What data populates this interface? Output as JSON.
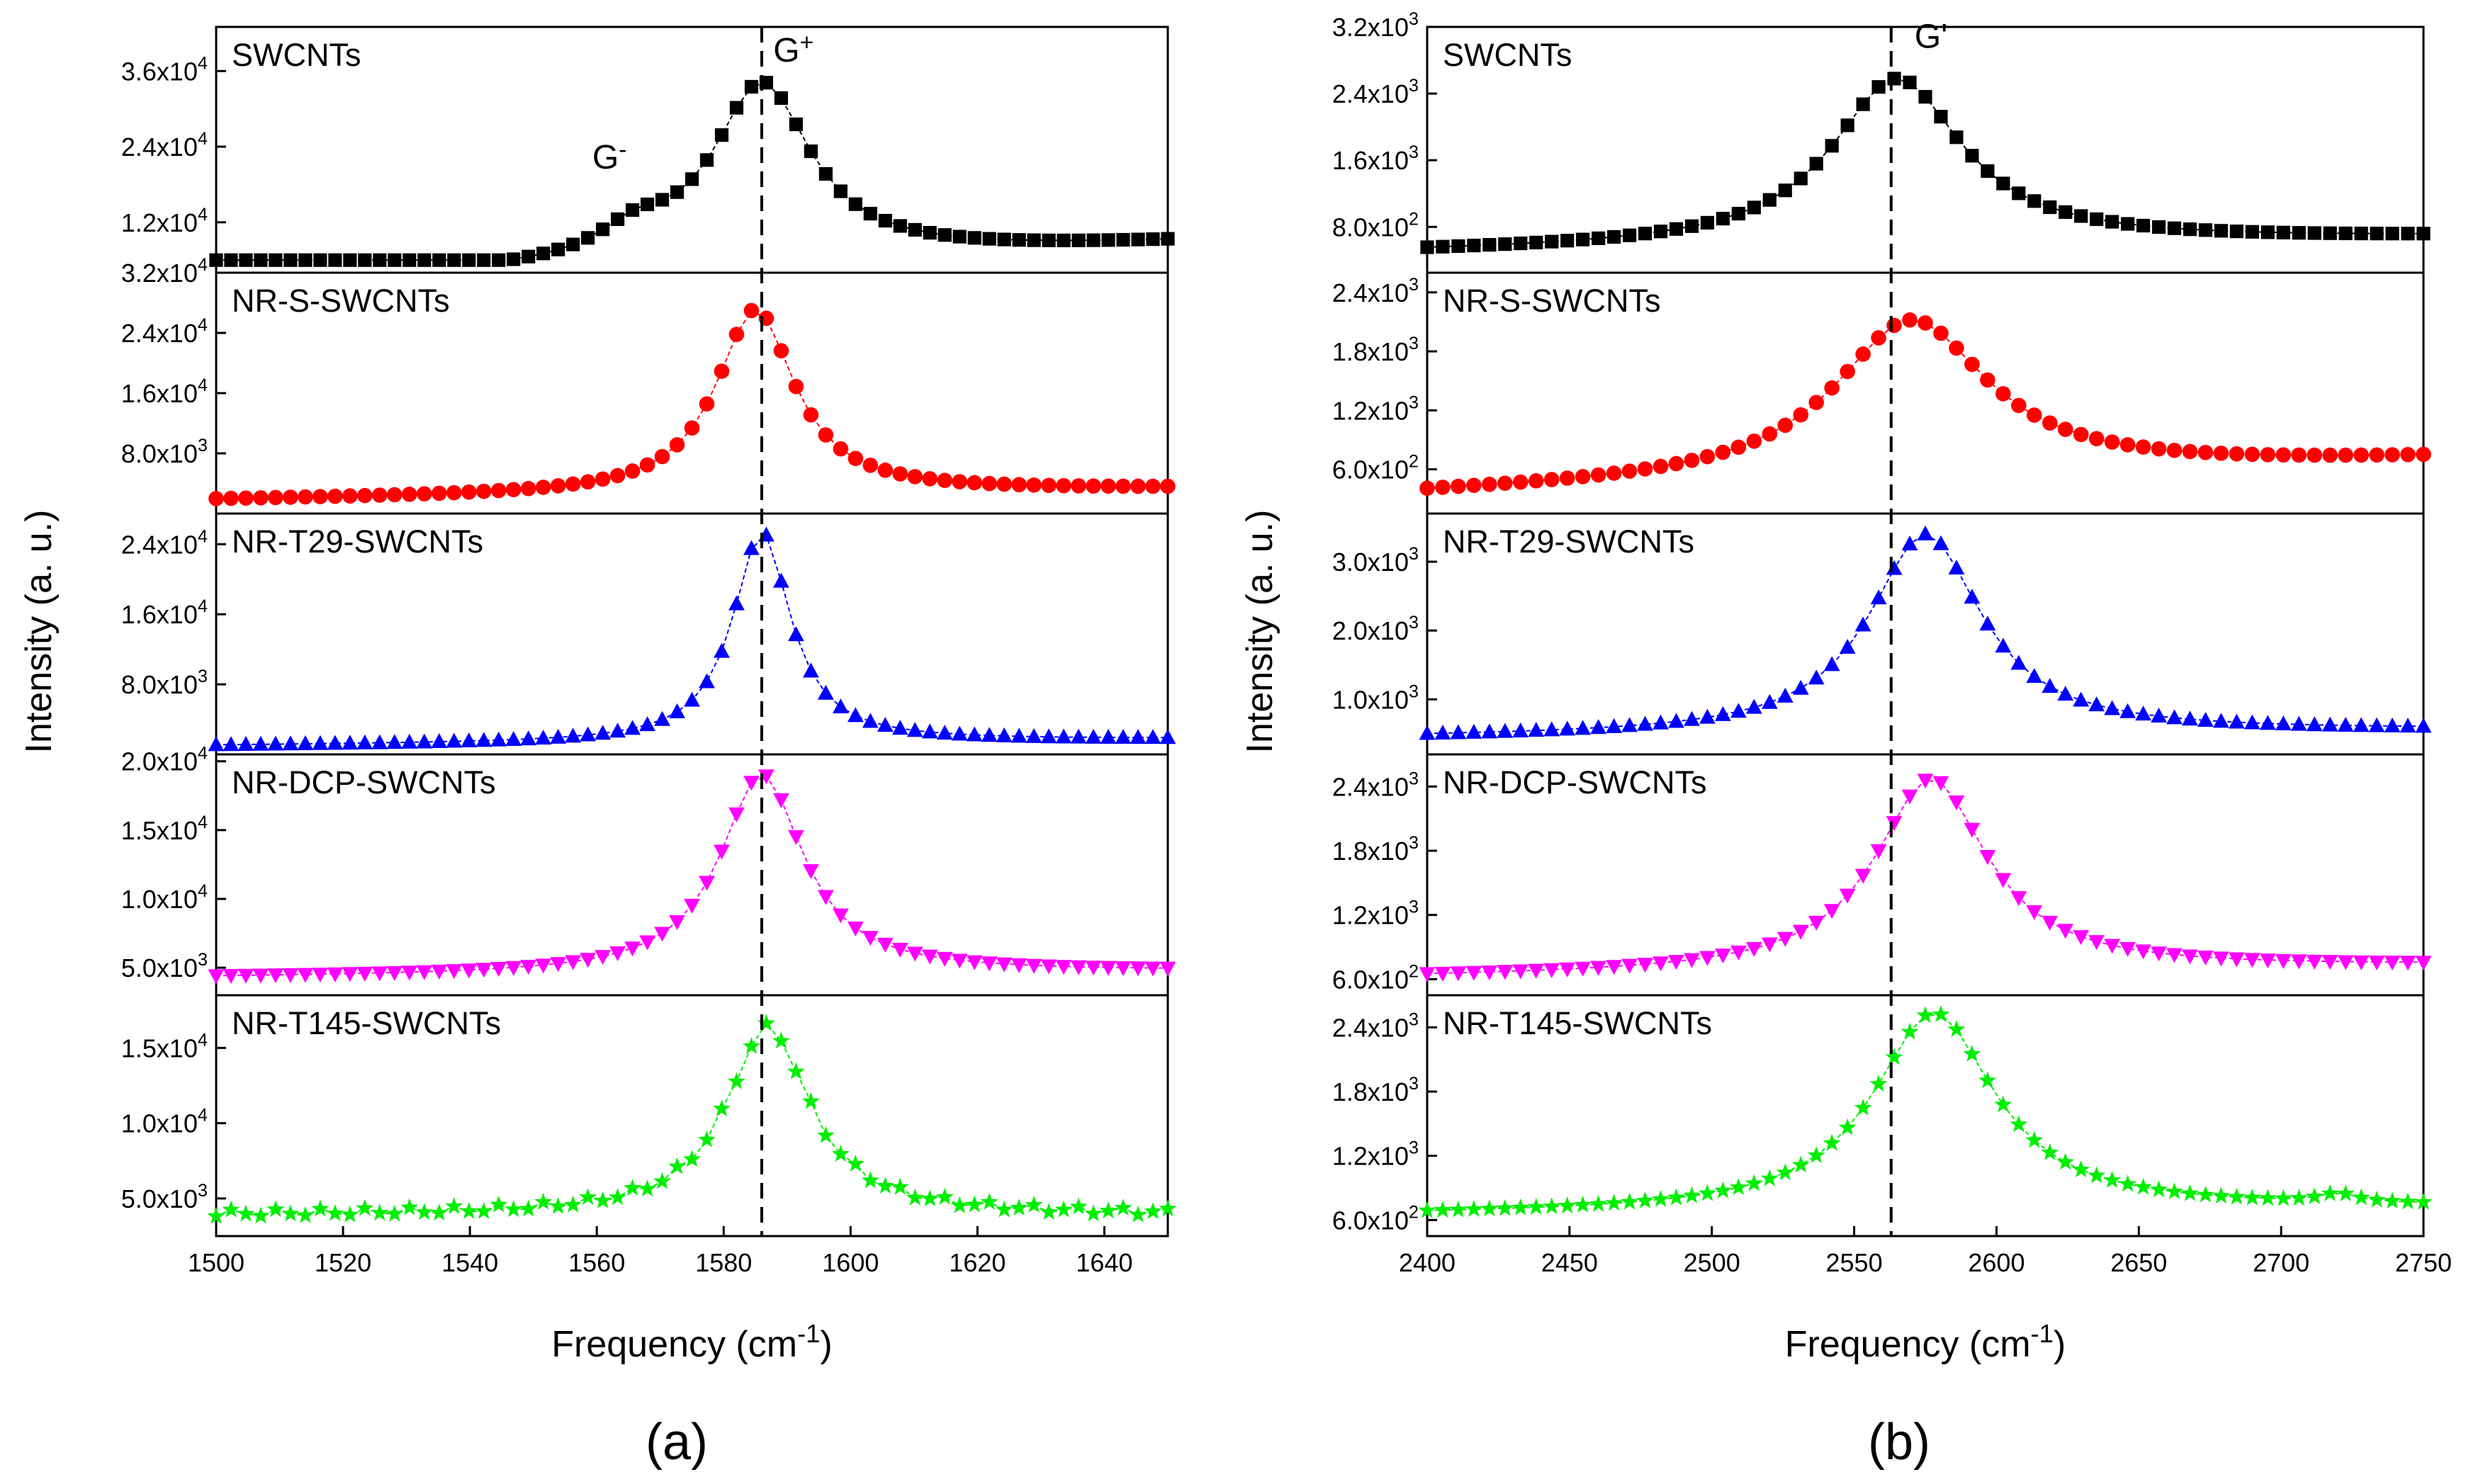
{
  "figure": {
    "panel_labels": [
      "(a)",
      "(b)"
    ]
  },
  "chart_data": [
    {
      "type": "line",
      "title": "(a)",
      "xlabel": "Frequency (cm-1)",
      "ylabel": "Intensity (a. u.)",
      "xlim": [
        1500,
        1650
      ],
      "xticks": [
        1500,
        1520,
        1540,
        1560,
        1580,
        1600,
        1620,
        1640
      ],
      "xtick_labels": [
        "1500",
        "1520",
        "1540",
        "1560",
        "1580",
        "1600",
        "1620",
        "1640"
      ],
      "dashed_line_x": 1586,
      "annotations": [
        {
          "text": "G-",
          "base": "G",
          "sup": "-",
          "x": 1562,
          "y": 20500,
          "subplot": 0
        },
        {
          "text": "G+",
          "base": "G",
          "sup": "+",
          "x": 1591,
          "y": 37500,
          "subplot": 0
        }
      ],
      "subplots": [
        {
          "name": "SWCNTs",
          "color": "#000000",
          "marker": "square",
          "ylim": [
            4000,
            43000
          ],
          "yticks": [
            12000,
            24000,
            36000
          ],
          "ytick_labels": [
            [
              "1.2x10",
              "4"
            ],
            [
              "2.4x10",
              "4"
            ],
            [
              "3.6x10",
              "4"
            ]
          ],
          "peak": {
            "x0": 1586,
            "amp": 28000,
            "gamma": 9.5,
            "base": 2000,
            "slope": 45,
            "xref": 1500,
            "floor": 6000
          },
          "shoulder": {
            "x0": 1566,
            "amp": 4000,
            "gamma": 7
          }
        },
        {
          "name": "NR-S-SWCNTs",
          "color": "#ff0000",
          "marker": "circle",
          "ylim": [
            0,
            32000
          ],
          "yticks": [
            8000,
            16000,
            24000,
            32000
          ],
          "ytick_labels": [
            [
              "8.0x10",
              "3"
            ],
            [
              "1.6x10",
              "4"
            ],
            [
              "2.4x10",
              "4"
            ],
            [
              "3.2x10",
              "4"
            ]
          ],
          "peak": {
            "x0": 1585,
            "amp": 24500,
            "gamma": 7.5,
            "base": 1800,
            "slope": 10,
            "xref": 1500,
            "floor": 0
          }
        },
        {
          "name": "NR-T29-SWCNTs",
          "color": "#0000ff",
          "marker": "triangle-up",
          "ylim": [
            0,
            27500
          ],
          "yticks": [
            8000,
            16000,
            24000
          ],
          "ytick_labels": [
            [
              "8.0x10",
              "3"
            ],
            [
              "1.6x10",
              "4"
            ],
            [
              "2.4x10",
              "4"
            ]
          ],
          "peak": {
            "x0": 1586,
            "amp": 24000,
            "gamma": 5.5,
            "base": 1000,
            "slope": 5,
            "xref": 1500,
            "floor": 0
          }
        },
        {
          "name": "NR-DCP-SWCNTs",
          "color": "#ff00ff",
          "marker": "triangle-down",
          "ylim": [
            3000,
            20500
          ],
          "yticks": [
            5000,
            10000,
            15000,
            20000
          ],
          "ytick_labels": [
            [
              "5.0x10",
              "3"
            ],
            [
              "1.0x10",
              "4"
            ],
            [
              "1.5x10",
              "4"
            ],
            [
              "2.0x10",
              "4"
            ]
          ],
          "peak": {
            "x0": 1586,
            "amp": 14500,
            "gamma": 8,
            "base": 4300,
            "slope": 3,
            "xref": 1500,
            "floor": 0
          }
        },
        {
          "name": "NR-T145-SWCNTs",
          "color": "#00ee00",
          "marker": "star",
          "ylim": [
            2500,
            18500
          ],
          "yticks": [
            5000,
            10000,
            15000
          ],
          "ytick_labels": [
            [
              "5.0x10",
              "3"
            ],
            [
              "1.0x10",
              "4"
            ],
            [
              "1.5x10",
              "4"
            ]
          ],
          "peak": {
            "x0": 1587,
            "amp": 12500,
            "gamma": 8,
            "base": 3900,
            "slope": 0,
            "xref": 1500,
            "floor": 0
          },
          "wiggle": 250
        }
      ]
    },
    {
      "type": "line",
      "title": "(b)",
      "xlabel": "Frequency (cm-1)",
      "ylabel": "Intensity (a. u.)",
      "xlim": [
        2400,
        2750
      ],
      "xticks": [
        2400,
        2450,
        2500,
        2550,
        2600,
        2650,
        2700,
        2750
      ],
      "xtick_labels": [
        "2400",
        "2450",
        "2500",
        "2550",
        "2600",
        "2650",
        "2700",
        "2750"
      ],
      "dashed_line_x": 2563,
      "annotations": [
        {
          "text": "G'",
          "base": "G'",
          "sup": "",
          "x": 2577,
          "y": 2950,
          "subplot": 0
        }
      ],
      "subplots": [
        {
          "name": "SWCNTs",
          "color": "#000000",
          "marker": "square",
          "ylim": [
            250,
            3200
          ],
          "yticks": [
            800,
            1600,
            2400,
            3200
          ],
          "ytick_labels": [
            [
              "8.0x10",
              "2"
            ],
            [
              "1.6x10",
              "3"
            ],
            [
              "2.4x10",
              "3"
            ],
            [
              "3.2x10",
              "3"
            ]
          ],
          "peak": {
            "x0": 2565,
            "amp": 2000,
            "gamma": 28,
            "base": 500,
            "slope": 0.5,
            "xref": 2400,
            "floor": 0
          }
        },
        {
          "name": "NR-S-SWCNTs",
          "color": "#ff0000",
          "marker": "circle",
          "ylim": [
            150,
            2600
          ],
          "yticks": [
            600,
            1200,
            1800,
            2400
          ],
          "ytick_labels": [
            [
              "6.0x10",
              "2"
            ],
            [
              "1.2x10",
              "3"
            ],
            [
              "1.8x10",
              "3"
            ],
            [
              "2.4x10",
              "3"
            ]
          ],
          "peak": {
            "x0": 2570,
            "amp": 1600,
            "gamma": 33,
            "base": 350,
            "slope": 1.0,
            "xref": 2400,
            "floor": 0
          }
        },
        {
          "name": "NR-T29-SWCNTs",
          "color": "#0000ff",
          "marker": "triangle-up",
          "ylim": [
            200,
            3700
          ],
          "yticks": [
            1000,
            2000,
            3000
          ],
          "ytick_labels": [
            [
              "1.0x10",
              "3"
            ],
            [
              "2.0x10",
              "3"
            ],
            [
              "3.0x10",
              "3"
            ]
          ],
          "peak": {
            "x0": 2575,
            "amp": 2900,
            "gamma": 24,
            "base": 450,
            "slope": 0.3,
            "xref": 2400,
            "floor": 0
          }
        },
        {
          "name": "NR-DCP-SWCNTs",
          "color": "#ff00ff",
          "marker": "triangle-down",
          "ylim": [
            450,
            2700
          ],
          "yticks": [
            600,
            1200,
            1800,
            2400
          ],
          "ytick_labels": [
            [
              "6.0x10",
              "2"
            ],
            [
              "1.2x10",
              "3"
            ],
            [
              "1.8x10",
              "3"
            ],
            [
              "2.4x10",
              "3"
            ]
          ],
          "peak": {
            "x0": 2577,
            "amp": 1800,
            "gamma": 24,
            "base": 620,
            "slope": 0.3,
            "xref": 2400,
            "floor": 0
          }
        },
        {
          "name": "NR-T145-SWCNTs",
          "color": "#00ee00",
          "marker": "star",
          "ylim": [
            450,
            2700
          ],
          "yticks": [
            600,
            1200,
            1800,
            2400
          ],
          "ytick_labels": [
            [
              "6.0x10",
              "2"
            ],
            [
              "1.2x10",
              "3"
            ],
            [
              "1.8x10",
              "3"
            ],
            [
              "2.4x10",
              "3"
            ]
          ],
          "peak": {
            "x0": 2578,
            "amp": 1850,
            "gamma": 26,
            "base": 650,
            "slope": 0.2,
            "xref": 2400,
            "floor": 0
          },
          "bump": {
            "x0": 2720,
            "amp": 80,
            "gamma": 8
          }
        }
      ]
    }
  ]
}
